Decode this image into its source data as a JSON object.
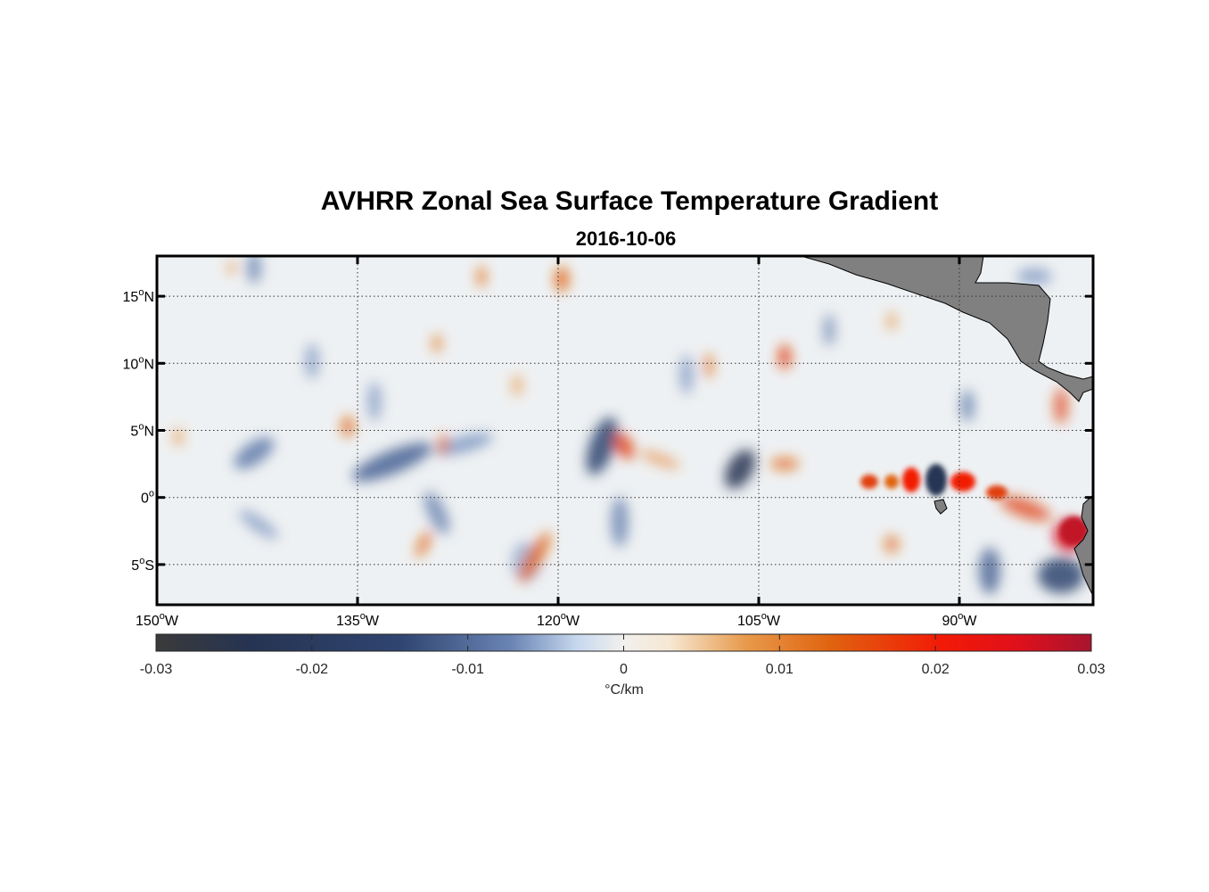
{
  "title": "AVHRR Zonal Sea Surface Temperature Gradient",
  "subtitle": "2016-10-06",
  "map": {
    "lon_range": [
      -150,
      -80
    ],
    "lat_range": [
      -8,
      18
    ],
    "lat_ticks": [
      {
        "value": 15,
        "num": "15",
        "hem": "N"
      },
      {
        "value": 10,
        "num": "10",
        "hem": "N"
      },
      {
        "value": 5,
        "num": "5",
        "hem": "N"
      },
      {
        "value": 0,
        "num": "0",
        "hem": ""
      },
      {
        "value": -5,
        "num": "5",
        "hem": "S"
      }
    ],
    "lon_ticks": [
      {
        "value": -150,
        "num": "150",
        "hem": "W"
      },
      {
        "value": -135,
        "num": "135",
        "hem": "W"
      },
      {
        "value": -120,
        "num": "120",
        "hem": "W"
      },
      {
        "value": -105,
        "num": "105",
        "hem": "W"
      },
      {
        "value": -90,
        "num": "90",
        "hem": "W"
      }
    ],
    "grid": true,
    "land_color": "#808080"
  },
  "colorbar": {
    "min": -0.03,
    "max": 0.03,
    "ticks": [
      "-0.03",
      "-0.02",
      "-0.01",
      "0",
      "0.01",
      "0.02",
      "0.03"
    ],
    "label": "°C/km",
    "colors": [
      "#3a3a3a",
      "#263452",
      "#2f4470",
      "#6a84b4",
      "#c6d8ee",
      "#f2f0ee",
      "#f6e7d2",
      "#e89a4c",
      "#e06410",
      "#f21a06",
      "#e0101a",
      "#a81430"
    ]
  }
}
